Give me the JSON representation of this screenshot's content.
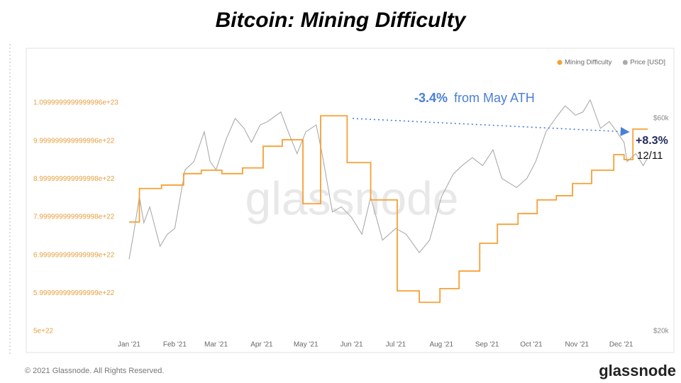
{
  "chart_data": {
    "type": "line",
    "title": "Bitcoin: Mining Difficulty",
    "watermark": "glassnode",
    "footer": "© 2021 Glassnode. All Rights Reserved.",
    "logo": "glassnode",
    "annotations": {
      "change_bold": "-3.4%",
      "change_text": "from May ATH",
      "latest_change": "+8.3%",
      "latest_date": "12/11"
    },
    "legend": "top-right",
    "xlim": [
      0,
      352
    ],
    "xticks": [
      {
        "value": 0,
        "label": "Jan '21"
      },
      {
        "value": 31,
        "label": "Feb '21"
      },
      {
        "value": 59,
        "label": "Mar '21"
      },
      {
        "value": 90,
        "label": "Apr '21"
      },
      {
        "value": 120,
        "label": "May '21"
      },
      {
        "value": 151,
        "label": "Jun '21"
      },
      {
        "value": 181,
        "label": "Jul '21"
      },
      {
        "value": 212,
        "label": "Aug '21"
      },
      {
        "value": 243,
        "label": "Sep '21"
      },
      {
        "value": 273,
        "label": "Oct '21"
      },
      {
        "value": 304,
        "label": "Nov '21"
      },
      {
        "value": 334,
        "label": "Dec '21"
      }
    ],
    "ylim": [
      5e+22,
      1.1e+23
    ],
    "yticks": [
      5e+22,
      {
        "value": 6e+22,
        "label": "5.999999999999999e+22"
      },
      {
        "value": 7e+22,
        "label": "6.999999999999999e+22"
      },
      {
        "value": 8e+22,
        "label": "7.999999999999998e+22"
      },
      {
        "value": 9e+22,
        "label": "8.999999999999998e+22"
      },
      {
        "value": 1e+23,
        "label": "9.999999999999996e+22"
      },
      {
        "value": 1.1e+23,
        "label": "1.0999999999999996e+23"
      }
    ],
    "y2lim": [
      20000,
      65000
    ],
    "y2scale": "log",
    "y2ticks": [
      {
        "value": 20000,
        "label": "$20k"
      },
      {
        "value": 60000,
        "label": "$60k"
      }
    ],
    "series": [
      {
        "name": "Mining Difficulty",
        "color": "#f7a035",
        "step": "post",
        "x": [
          0,
          7,
          22,
          37,
          49,
          63,
          77,
          91,
          104,
          118,
          130,
          148,
          164,
          182,
          197,
          211,
          224,
          238,
          250,
          264,
          277,
          290,
          301,
          314,
          329,
          336,
          342
        ],
        "values": [
          7.87e+22,
          8.75e+22,
          8.84e+22,
          9.14e+22,
          9.23e+22,
          9.14e+22,
          9.29e+22,
          9.86e+22,
          1.003e+23,
          8.35e+22,
          1.066e+23,
          9.43e+22,
          8.45e+22,
          6.06e+22,
          5.76e+22,
          6.12e+22,
          6.58e+22,
          7.31e+22,
          7.81e+22,
          8.09e+22,
          8.45e+22,
          8.56e+22,
          8.88e+22,
          9.23e+22,
          9.64e+22,
          9.51e+22,
          1.031e+23
        ]
      },
      {
        "name": "Price [USD]",
        "color": "#aaaaaa",
        "axis": "y2",
        "x": [
          0,
          3,
          7,
          10,
          14,
          21,
          26,
          31,
          38,
          44,
          51,
          55,
          59,
          66,
          72,
          78,
          83,
          89,
          94,
          103,
          108,
          114,
          120,
          127,
          131,
          138,
          144,
          151,
          158,
          164,
          172,
          181,
          188,
          197,
          204,
          212,
          220,
          226,
          233,
          240,
          247,
          253,
          263,
          270,
          276,
          283,
          291,
          296,
          303,
          308,
          313,
          320,
          326,
          331,
          336,
          338,
          344,
          349,
          352
        ],
        "values": [
          29000,
          33000,
          40000,
          35000,
          38000,
          31000,
          33000,
          34000,
          46000,
          48000,
          56000,
          48000,
          46000,
          54000,
          60000,
          57000,
          53000,
          58000,
          59000,
          62000,
          56000,
          50000,
          56000,
          58000,
          50000,
          37000,
          38000,
          36000,
          33000,
          40000,
          32000,
          34000,
          33000,
          30000,
          32000,
          40000,
          45000,
          47000,
          49000,
          47000,
          51000,
          44000,
          42000,
          44000,
          48000,
          56000,
          61000,
          64000,
          61000,
          62000,
          66000,
          57000,
          59000,
          56000,
          53000,
          48000,
          50000,
          47000,
          49000
        ]
      }
    ]
  }
}
